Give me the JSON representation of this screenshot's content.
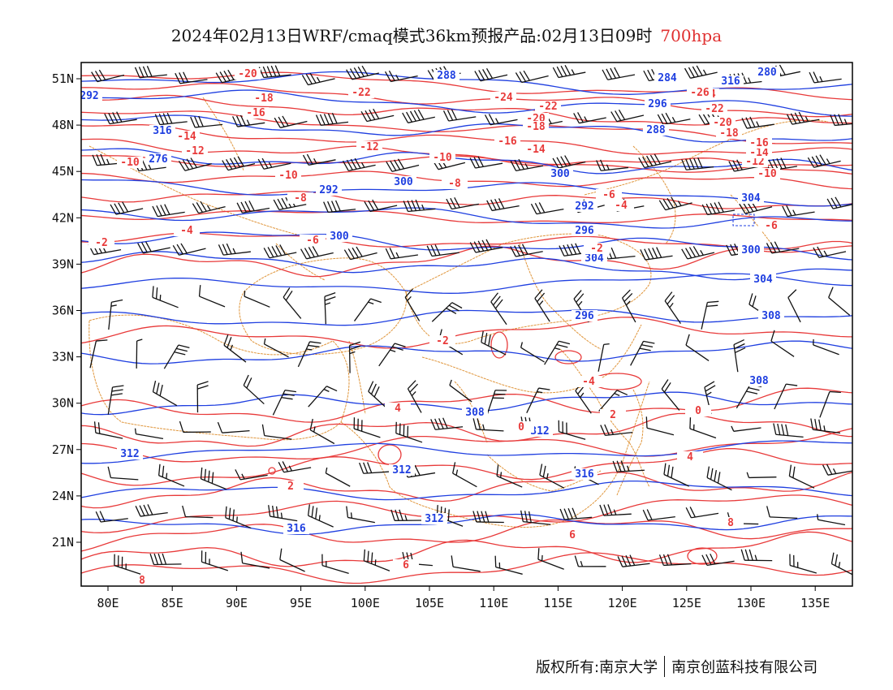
{
  "title": {
    "text": "2024年02月13日WRF/cmaq模式36km预报产品:02月13日09时",
    "level": "700hpa"
  },
  "colors": {
    "temperature": "#e83a3a",
    "height": "#1f3fe0",
    "boundary": "#e0963c",
    "wind": "#111111",
    "frame": "#000000"
  },
  "axes": {
    "x_labels": [
      "80E",
      "85E",
      "90E",
      "95E",
      "100E",
      "105E",
      "110E",
      "115E",
      "120E",
      "125E",
      "130E",
      "135E"
    ],
    "y_labels": [
      "51N",
      "48N",
      "45N",
      "42N",
      "39N",
      "36N",
      "33N",
      "30N",
      "27N",
      "24N",
      "21N"
    ]
  },
  "height_labels": [
    "292",
    "288",
    "284",
    "280",
    "276",
    "292",
    "300",
    "300",
    "296",
    "304",
    "300",
    "296",
    "292",
    "288",
    "304",
    "300",
    "296",
    "304",
    "308",
    "308",
    "312",
    "308",
    "312",
    "312",
    "316",
    "316",
    "312",
    "316",
    "316"
  ],
  "temp_labels": [
    "-20",
    "-18",
    "-16",
    "-14",
    "-12",
    "-10",
    "-10",
    "-8",
    "-6",
    "-4",
    "-2",
    "-22",
    "-24",
    "-22",
    "-20",
    "-18",
    "-16",
    "-14",
    "-12",
    "-10",
    "-8",
    "-6",
    "-4",
    "-2",
    "-6",
    "-10",
    "-12",
    "-14",
    "-16",
    "-18",
    "-20",
    "-22",
    "-24",
    "-26",
    "0",
    "2",
    "4",
    "6",
    "8",
    "-4",
    "-2",
    "0",
    "2",
    "4",
    "6",
    "8"
  ],
  "footer": {
    "left": "版权所有:南京大学",
    "right": "南京创蓝科技有限公司"
  }
}
